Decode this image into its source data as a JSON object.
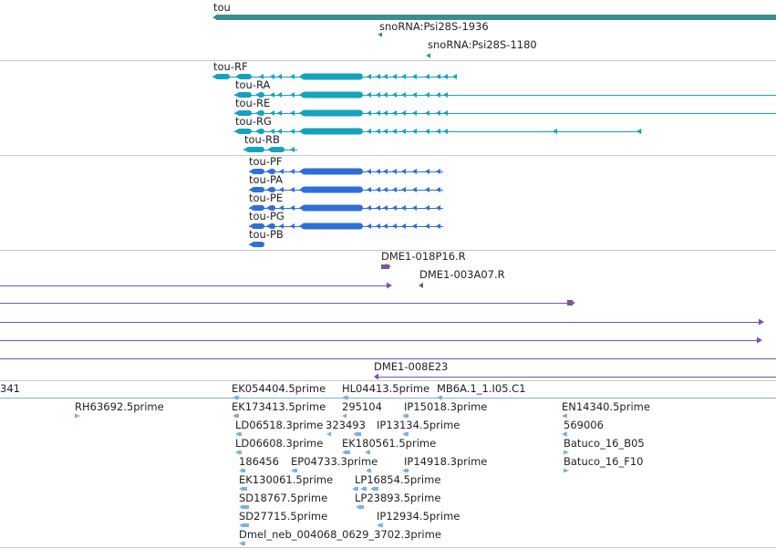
{
  "gene_track": {
    "gene_label": "tou",
    "snorna": [
      "snoRNA:Psi28S-1936",
      "snoRNA:Psi28S-1180"
    ]
  },
  "transcripts": [
    "tou-RF",
    "tou-RA",
    "tou-RE",
    "tou-RG",
    "tou-RB"
  ],
  "proteins": [
    "tou-PF",
    "tou-PA",
    "tou-PE",
    "tou-PG",
    "tou-PB"
  ],
  "bac_track": {
    "labels": [
      "DME1-018P16.R",
      "DME1-003A07.R",
      "DME1-008E23"
    ]
  },
  "est_track": {
    "left_cut_label": "341",
    "labels": [
      "RH63692.5prime",
      "EK054404.5prime",
      "EK173413.5prime",
      "LD06518.3prime",
      "LD06608.3prime",
      "186456",
      "EK130061.5prime",
      "SD18767.5prime",
      "SD27715.5prime",
      "Dmel_neb_004068_0629_3702.3prime",
      "HL04413.5prime",
      "295104",
      "323493",
      "EK180561.5prime",
      "EP04733.3prime",
      "LP16854.5prime",
      "LP23893.5prime",
      "MB6A.1_1.I05.C1",
      "IP15018.3prime",
      "IP13134.5prime",
      "IP14918.3prime",
      "IP12934.5prime",
      "EN14340.5prime",
      "569006",
      "Batuco_16_B05",
      "Batuco_16_F10"
    ]
  },
  "colors": {
    "gene": "#3a8f8c",
    "transcript": "#17a2bb",
    "protein": "#2f6fd6",
    "bac": "#7a52a6",
    "est": "#7fb1db",
    "separator": "#c7c7c7"
  }
}
